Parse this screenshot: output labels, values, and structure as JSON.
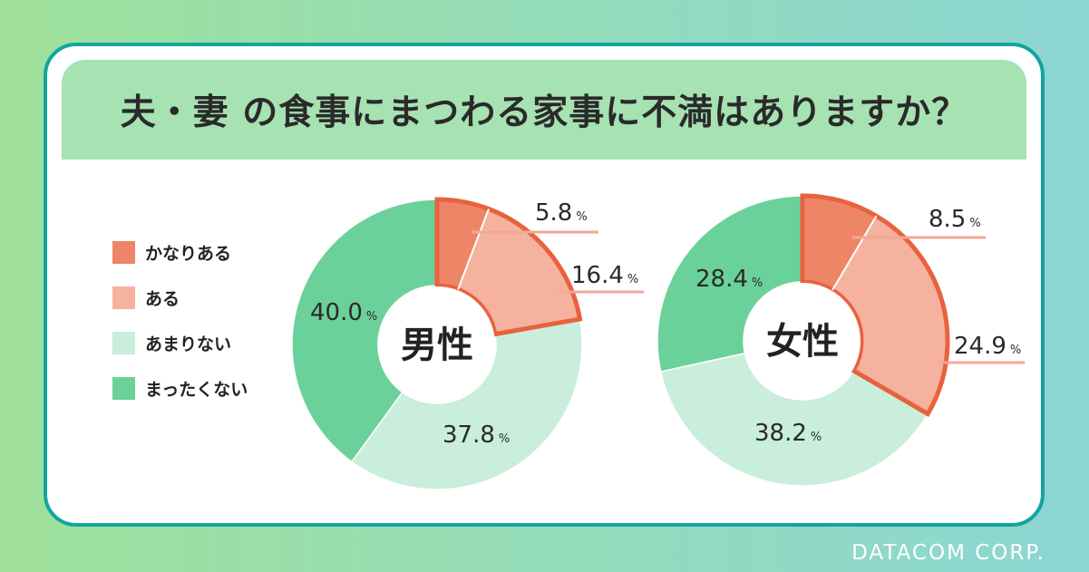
{
  "title": "夫・妻 の食事にまつわる家事に不満はありますか？",
  "footer": "DATACOM CORP.",
  "legend": [
    {
      "label": "かなりある",
      "color": "#ee8566"
    },
    {
      "label": "ある",
      "color": "#f5b29e"
    },
    {
      "label": "あまりない",
      "color": "#c9eedb"
    },
    {
      "label": "まったくない",
      "color": "#6bd19a"
    }
  ],
  "colors": {
    "highlight_border": "#e8623e",
    "leader_line": "#f2a896",
    "card_border": "#12a5a0"
  },
  "chart_data": [
    {
      "type": "pie",
      "center_label": "男性",
      "categories": [
        "かなりある",
        "ある",
        "あまりない",
        "まったくない"
      ],
      "values": [
        5.8,
        16.4,
        37.8,
        40.0
      ],
      "value_labels": [
        "5.8",
        "16.4",
        "37.8",
        "40.0"
      ],
      "unit": "%"
    },
    {
      "type": "pie",
      "center_label": "女性",
      "categories": [
        "かなりある",
        "ある",
        "あまりない",
        "まったくない"
      ],
      "values": [
        8.5,
        24.9,
        38.2,
        28.4
      ],
      "value_labels": [
        "8.5",
        "24.9",
        "38.2",
        "28.4"
      ],
      "unit": "%"
    }
  ]
}
